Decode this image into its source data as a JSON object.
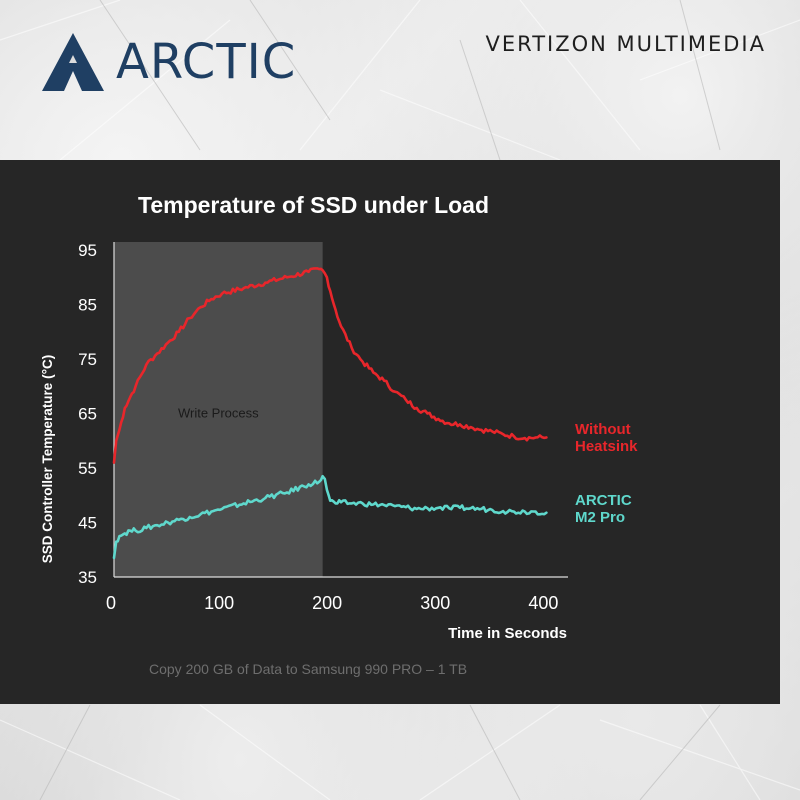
{
  "brand": {
    "name": "ARCTIC",
    "logo_icon": "arctic-triangle-icon",
    "color": "#1f3f63"
  },
  "publisher": "VERTIZON MULTIMEDIA",
  "caption": "Copy 200 GB of Data to Samsung 990 PRO  – 1 TB",
  "chart_data": {
    "type": "line",
    "title": "Temperature of SSD under Load",
    "xlabel": "Time in Seconds",
    "ylabel": "SSD Controller Temperature (°C)",
    "xlim": [
      0,
      420
    ],
    "ylim": [
      35,
      95
    ],
    "xticks": [
      0,
      100,
      200,
      300,
      400
    ],
    "yticks": [
      35,
      45,
      55,
      65,
      75,
      85,
      95
    ],
    "grid": false,
    "legend": "right, inline labels",
    "shaded_region": {
      "label": "Write Process",
      "x_from": 0,
      "x_to": 193
    },
    "series": [
      {
        "name": "Without Heatsink",
        "color": "#e8262b",
        "x": [
          0,
          2,
          5,
          10,
          15,
          20,
          30,
          40,
          50,
          60,
          70,
          80,
          90,
          100,
          120,
          140,
          160,
          180,
          190,
          193,
          197,
          200,
          205,
          210,
          220,
          230,
          240,
          250,
          260,
          270,
          280,
          290,
          300,
          310,
          320,
          330,
          340,
          350,
          360,
          370,
          380,
          390,
          400
        ],
        "y": [
          56,
          60,
          62,
          66,
          68,
          70,
          74,
          76,
          78,
          80,
          82.5,
          84.5,
          86,
          87,
          88,
          89,
          90,
          91,
          91.5,
          91.3,
          90,
          87.5,
          84,
          81,
          77,
          74.5,
          72.5,
          71,
          69,
          67.5,
          66,
          65,
          64,
          63.2,
          63,
          62.5,
          62,
          61.7,
          61.2,
          60.8,
          60.5,
          60.6,
          60.6
        ]
      },
      {
        "name": "ARCTIC M2 Pro",
        "color": "#5fd8cc",
        "x": [
          0,
          2,
          5,
          10,
          15,
          20,
          30,
          40,
          50,
          60,
          70,
          80,
          90,
          100,
          120,
          140,
          160,
          180,
          190,
          193,
          195,
          197,
          200,
          205,
          210,
          220,
          230,
          240,
          250,
          260,
          270,
          280,
          290,
          300,
          310,
          320,
          330,
          340,
          350,
          360,
          370,
          380,
          390,
          400
        ],
        "y": [
          38.5,
          41.5,
          42.5,
          43,
          43.5,
          43.5,
          44,
          44.5,
          45,
          45.5,
          46,
          46.5,
          47,
          47.5,
          48.5,
          49.5,
          50.5,
          52,
          52.5,
          53.5,
          53,
          51,
          49,
          48.5,
          48.7,
          48.5,
          48.5,
          48.3,
          48.2,
          48,
          47.8,
          47.5,
          47.6,
          47.7,
          47.6,
          47.7,
          47.6,
          47.5,
          47.3,
          47.1,
          47,
          47,
          47,
          46.8
        ]
      }
    ]
  }
}
